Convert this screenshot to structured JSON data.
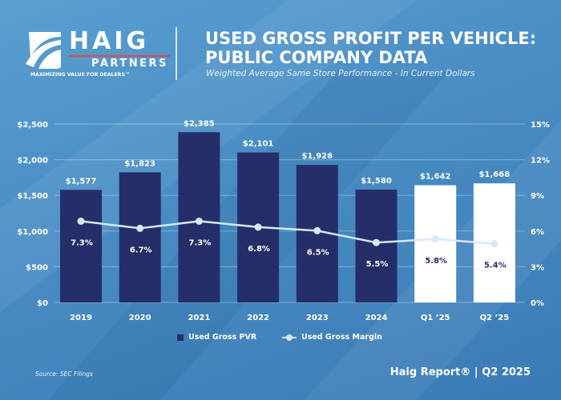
{
  "brand": {
    "name": "HAIG",
    "sub": "PARTNERS",
    "tagline": "MAXIMIZING VALUE FOR DEALERS™",
    "accent_color": "#e0474c"
  },
  "header": {
    "title_line1": "USED GROSS PROFIT PER VEHICLE:",
    "title_line2": "PUBLIC COMPANY DATA",
    "subtitle": "Weighted Average Same Store Performance - In Current Dollars"
  },
  "chart_data": {
    "type": "bar",
    "title": "Used Gross Profit Per Vehicle: Public Company Data",
    "subtitle": "Weighted Average Same Store Performance - In Current Dollars",
    "categories": [
      "2019",
      "2020",
      "2021",
      "2022",
      "2023",
      "2024",
      "Q1 ’25",
      "Q2 ’25"
    ],
    "series": [
      {
        "name": "Used Gross PVR",
        "type": "bar",
        "axis": "left",
        "values": [
          1577,
          1823,
          2385,
          2101,
          1926,
          1580,
          1642,
          1668
        ],
        "labels": [
          "$1,577",
          "$1,823",
          "$2,385",
          "$2,101",
          "$1,926",
          "$1,580",
          "$1,642",
          "$1,668"
        ],
        "color": "#252e68",
        "highlight_color": "#ffffff",
        "highlight_categories": [
          "Q1 ’25",
          "Q2 ’25"
        ]
      },
      {
        "name": "Used Gross Margin",
        "type": "line",
        "axis": "right",
        "values": [
          7.3,
          6.7,
          7.3,
          6.8,
          6.5,
          5.5,
          5.8,
          5.4
        ],
        "labels": [
          "7.3%",
          "6.7%",
          "7.3%",
          "6.8%",
          "6.5%",
          "5.5%",
          "5.8%",
          "5.4%"
        ],
        "color": "#d6e8fb"
      }
    ],
    "y_left": {
      "range": [
        0,
        2500
      ],
      "ticks": [
        0,
        500,
        1000,
        1500,
        2000,
        2500
      ],
      "tick_labels": [
        "$0",
        "$500",
        "$1,000",
        "$1,500",
        "$2,000",
        "$2,500"
      ]
    },
    "y_right": {
      "range": [
        0,
        15
      ],
      "ticks": [
        0,
        3,
        6,
        9,
        12,
        15
      ],
      "tick_labels": [
        "0%",
        "3%",
        "6%",
        "9%",
        "12%",
        "15%"
      ]
    },
    "grid": true,
    "legend": {
      "position": "bottom-center",
      "entries": [
        "Used Gross PVR",
        "Used Gross Margin"
      ]
    }
  },
  "footer": {
    "source": "Source: SEC Filings",
    "report": "Haig Report® | Q2 2025"
  }
}
